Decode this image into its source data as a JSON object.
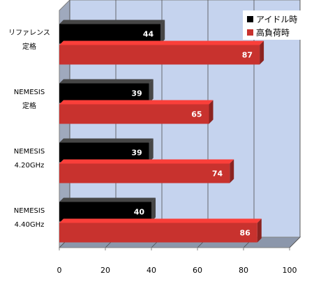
{
  "chart_data": {
    "type": "bar",
    "orientation": "horizontal",
    "categories": [
      [
        "リファレンス",
        "定格"
      ],
      [
        "NEMESIS",
        "定格"
      ],
      [
        "NEMESIS",
        "4.20GHz"
      ],
      [
        "NEMESIS",
        "4.40GHz"
      ]
    ],
    "series": [
      {
        "name": "アイドル時",
        "values": [
          44,
          39,
          39,
          40
        ],
        "color": "#000000"
      },
      {
        "name": "高負荷時",
        "values": [
          87,
          65,
          74,
          86
        ],
        "color": "#c8322e"
      }
    ],
    "xlim": [
      0,
      100
    ],
    "xticks": [
      0,
      20,
      40,
      60,
      80,
      100
    ],
    "grid": true,
    "legend_position": "top-right",
    "background_color": "#c5d3ee",
    "data_labels": true
  }
}
